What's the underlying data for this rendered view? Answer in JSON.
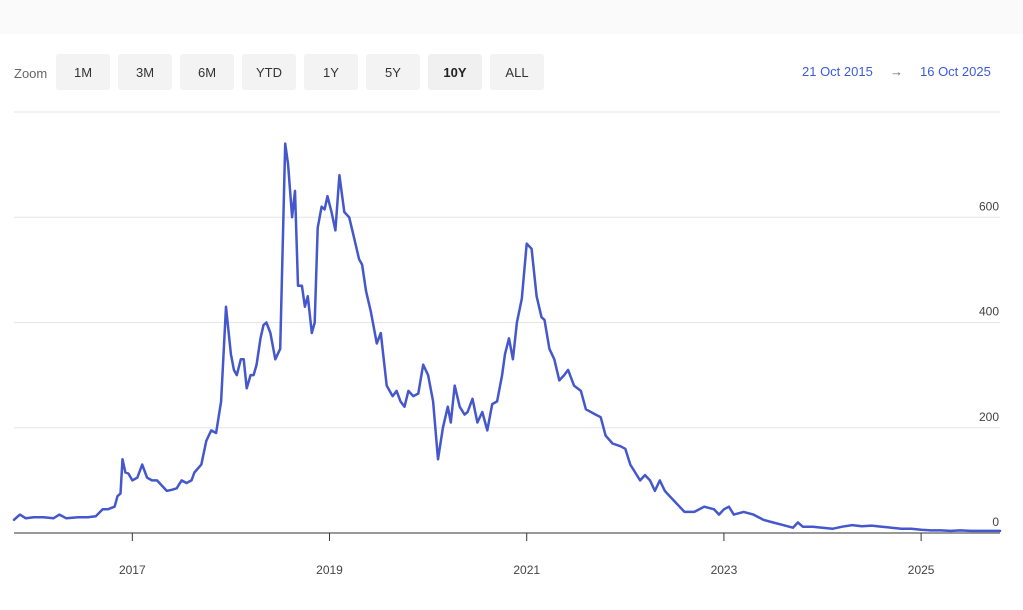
{
  "toolbar": {
    "zoom_label": "Zoom",
    "buttons": [
      "1M",
      "3M",
      "6M",
      "YTD",
      "1Y",
      "5Y",
      "10Y",
      "ALL"
    ],
    "active": "10Y"
  },
  "date_range": {
    "from": "21 Oct 2015",
    "arrow": "→",
    "to": "16 Oct 2025"
  },
  "chart_data": {
    "type": "line",
    "xlim": [
      2015.8,
      2025.8
    ],
    "ylim": [
      0,
      800
    ],
    "x_ticks": [
      {
        "value": 2017,
        "label": "2017"
      },
      {
        "value": 2019,
        "label": "2019"
      },
      {
        "value": 2021,
        "label": "2021"
      },
      {
        "value": 2023,
        "label": "2023"
      },
      {
        "value": 2025,
        "label": "2025"
      }
    ],
    "y_ticks": [
      {
        "value": 0,
        "label": "0"
      },
      {
        "value": 200,
        "label": "200"
      },
      {
        "value": 400,
        "label": "400"
      },
      {
        "value": 600,
        "label": "600"
      }
    ],
    "grid": true,
    "series": [
      {
        "color": "#4457cc",
        "x": [
          2015.8,
          2015.86,
          2015.92,
          2016.0,
          2016.1,
          2016.2,
          2016.26,
          2016.33,
          2016.45,
          2016.55,
          2016.63,
          2016.7,
          2016.75,
          2016.82,
          2016.85,
          2016.88,
          2016.9,
          2016.93,
          2016.96,
          2017.0,
          2017.05,
          2017.1,
          2017.15,
          2017.2,
          2017.25,
          2017.3,
          2017.35,
          2017.4,
          2017.45,
          2017.5,
          2017.55,
          2017.6,
          2017.63,
          2017.7,
          2017.75,
          2017.8,
          2017.85,
          2017.9,
          2017.95,
          2018.0,
          2018.03,
          2018.06,
          2018.1,
          2018.13,
          2018.16,
          2018.2,
          2018.23,
          2018.26,
          2018.3,
          2018.33,
          2018.36,
          2018.4,
          2018.45,
          2018.5,
          2018.55,
          2018.58,
          2018.62,
          2018.65,
          2018.68,
          2018.72,
          2018.75,
          2018.78,
          2018.82,
          2018.85,
          2018.88,
          2018.92,
          2018.95,
          2018.98,
          2019.02,
          2019.06,
          2019.1,
          2019.15,
          2019.2,
          2019.25,
          2019.3,
          2019.33,
          2019.37,
          2019.42,
          2019.48,
          2019.52,
          2019.58,
          2019.64,
          2019.68,
          2019.72,
          2019.76,
          2019.8,
          2019.85,
          2019.9,
          2019.95,
          2020.0,
          2020.05,
          2020.1,
          2020.15,
          2020.2,
          2020.23,
          2020.27,
          2020.32,
          2020.37,
          2020.4,
          2020.45,
          2020.5,
          2020.55,
          2020.6,
          2020.65,
          2020.7,
          2020.75,
          2020.78,
          2020.82,
          2020.86,
          2020.9,
          2020.95,
          2021.0,
          2021.05,
          2021.1,
          2021.15,
          2021.18,
          2021.23,
          2021.28,
          2021.33,
          2021.38,
          2021.42,
          2021.48,
          2021.55,
          2021.6,
          2021.7,
          2021.75,
          2021.8,
          2021.87,
          2021.95,
          2022.0,
          2022.05,
          2022.1,
          2022.15,
          2022.2,
          2022.25,
          2022.3,
          2022.35,
          2022.4,
          2022.45,
          2022.5,
          2022.55,
          2022.6,
          2022.7,
          2022.8,
          2022.9,
          2022.95,
          2023.0,
          2023.05,
          2023.1,
          2023.2,
          2023.3,
          2023.4,
          2023.5,
          2023.6,
          2023.7,
          2023.75,
          2023.8,
          2023.9,
          2024.0,
          2024.1,
          2024.2,
          2024.3,
          2024.4,
          2024.5,
          2024.6,
          2024.7,
          2024.8,
          2024.9,
          2025.0,
          2025.1,
          2025.2,
          2025.3,
          2025.4,
          2025.5,
          2025.6,
          2025.7,
          2025.8
        ],
        "y": [
          25,
          35,
          28,
          30,
          30,
          28,
          35,
          28,
          30,
          30,
          32,
          45,
          45,
          50,
          70,
          75,
          140,
          115,
          113,
          100,
          105,
          130,
          105,
          100,
          100,
          90,
          80,
          82,
          85,
          100,
          95,
          100,
          115,
          130,
          175,
          195,
          190,
          250,
          430,
          340,
          310,
          300,
          330,
          330,
          275,
          300,
          300,
          320,
          370,
          395,
          400,
          380,
          330,
          350,
          740,
          700,
          600,
          650,
          470,
          470,
          430,
          450,
          380,
          400,
          580,
          620,
          615,
          640,
          610,
          575,
          680,
          610,
          600,
          560,
          520,
          510,
          460,
          420,
          360,
          380,
          280,
          260,
          270,
          250,
          240,
          270,
          260,
          265,
          320,
          300,
          250,
          140,
          200,
          240,
          210,
          280,
          240,
          225,
          230,
          255,
          210,
          230,
          195,
          245,
          250,
          300,
          340,
          370,
          330,
          400,
          445,
          550,
          540,
          450,
          410,
          405,
          350,
          330,
          290,
          300,
          310,
          280,
          270,
          235,
          225,
          220,
          185,
          170,
          165,
          160,
          130,
          115,
          100,
          110,
          100,
          80,
          100,
          80,
          70,
          60,
          50,
          40,
          40,
          50,
          45,
          35,
          45,
          50,
          35,
          40,
          35,
          25,
          20,
          15,
          10,
          20,
          12,
          12,
          10,
          8,
          12,
          15,
          13,
          14,
          12,
          10,
          8,
          8,
          6,
          5,
          5,
          4,
          5,
          4,
          4,
          4,
          4
        ]
      }
    ]
  }
}
